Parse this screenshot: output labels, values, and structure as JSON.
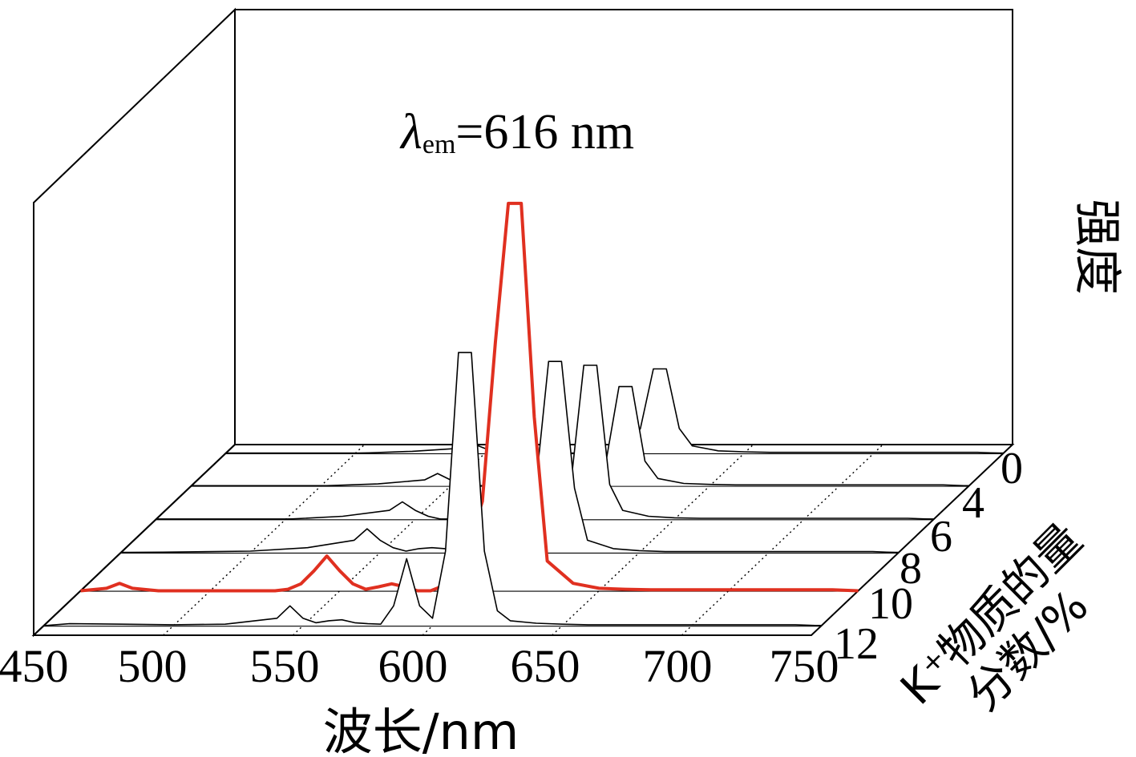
{
  "chart_data": {
    "type": "line",
    "style": "3d-waterfall",
    "annotation": {
      "lambda": "λ",
      "subscript": "em",
      "text": "=616 nm"
    },
    "xlabel": "波长/nm",
    "ylabel": "强度",
    "zlabel_line1": "K⁺物质的量",
    "zlabel_line2": "分数/%",
    "xlim": [
      450,
      750
    ],
    "x_ticks": [
      "450",
      "500",
      "550",
      "600",
      "650",
      "700",
      "750"
    ],
    "z_ticks": [
      "0",
      "4",
      "6",
      "8",
      "10",
      "12"
    ],
    "highlight_series": "10",
    "highlight_color": "#e03020",
    "series": [
      {
        "name": "0",
        "x": [
          450,
          500,
          522,
          540,
          545,
          550,
          555,
          560,
          565,
          570,
          575,
          580,
          585,
          590,
          595,
          600,
          605,
          610,
          615,
          620,
          625,
          630,
          640,
          650,
          660,
          670,
          680,
          690,
          700,
          710,
          720,
          730,
          740,
          750
        ],
        "y": [
          0,
          0,
          0.004,
          0.01,
          0.02,
          0.01,
          0.004,
          0,
          0,
          0,
          0,
          0,
          0,
          0,
          0,
          0,
          0.01,
          0.05,
          0.17,
          0.17,
          0.05,
          0.015,
          0.005,
          0.003,
          0.002,
          0.002,
          0.002,
          0.002,
          0.002,
          0.002,
          0.002,
          0.002,
          0.002,
          0
        ]
      },
      {
        "name": "4",
        "x": [
          450,
          500,
          522,
          540,
          545,
          550,
          555,
          560,
          565,
          570,
          575,
          580,
          585,
          590,
          595,
          600,
          605,
          610,
          615,
          620,
          625,
          630,
          640,
          650,
          660,
          670,
          680,
          690,
          700,
          710,
          720,
          730,
          740,
          750
        ],
        "y": [
          0,
          0,
          0.004,
          0.012,
          0.025,
          0.012,
          0.004,
          0,
          0,
          0,
          0,
          0,
          0,
          0,
          0,
          0,
          0.01,
          0.05,
          0.2,
          0.2,
          0.05,
          0.015,
          0.005,
          0.003,
          0.002,
          0.002,
          0.002,
          0.002,
          0.002,
          0.002,
          0.002,
          0.002,
          0.002,
          0
        ]
      },
      {
        "name": "6",
        "x": [
          450,
          500,
          522,
          540,
          545,
          550,
          555,
          560,
          565,
          570,
          575,
          580,
          585,
          590,
          595,
          600,
          605,
          610,
          615,
          620,
          625,
          630,
          640,
          650,
          660,
          670,
          680,
          690,
          700,
          710,
          720,
          730,
          740,
          750
        ],
        "y": [
          0,
          0,
          0.006,
          0.018,
          0.035,
          0.018,
          0.006,
          0,
          0,
          0,
          0,
          0,
          0,
          0,
          0,
          0,
          0.012,
          0.07,
          0.31,
          0.31,
          0.07,
          0.018,
          0.006,
          0.003,
          0.002,
          0.002,
          0.002,
          0.002,
          0.002,
          0.002,
          0.002,
          0.002,
          0.002,
          0
        ]
      },
      {
        "name": "8",
        "x": [
          450,
          500,
          522,
          540,
          545,
          550,
          555,
          560,
          565,
          570,
          575,
          580,
          585,
          590,
          595,
          600,
          605,
          610,
          615,
          620,
          625,
          630,
          640,
          650,
          660,
          670,
          680,
          690,
          700,
          710,
          720,
          730,
          740,
          750
        ],
        "y": [
          0,
          0.003,
          0.01,
          0.025,
          0.048,
          0.025,
          0.01,
          0.003,
          0.008,
          0.01,
          0.008,
          0.004,
          0,
          0,
          0,
          0.002,
          0.02,
          0.13,
          0.385,
          0.385,
          0.13,
          0.025,
          0.008,
          0.004,
          0.002,
          0.002,
          0.002,
          0.002,
          0.002,
          0.002,
          0.002,
          0.002,
          0.002,
          0
        ]
      },
      {
        "name": "10",
        "x": [
          450,
          460,
          465,
          470,
          480,
          500,
          525,
          530,
          535,
          540,
          545,
          550,
          555,
          560,
          565,
          570,
          575,
          580,
          585,
          590,
          595,
          600,
          605,
          610,
          615,
          620,
          625,
          630,
          640,
          650,
          660,
          670,
          680,
          690,
          700,
          710,
          720,
          730,
          740,
          750
        ],
        "y": [
          0,
          0.005,
          0.015,
          0.005,
          0,
          0,
          0,
          0.003,
          0.014,
          0.04,
          0.07,
          0.04,
          0.014,
          0.003,
          0.008,
          0.014,
          0.008,
          0,
          0,
          0.01,
          0.04,
          0.1,
          0.18,
          0.5,
          0.78,
          0.78,
          0.35,
          0.06,
          0.015,
          0.005,
          0.003,
          0.002,
          0.002,
          0.002,
          0.002,
          0.002,
          0.002,
          0.002,
          0.002,
          0
        ]
      },
      {
        "name": "12",
        "x": [
          450,
          460,
          480,
          500,
          520,
          540,
          545,
          550,
          555,
          560,
          565,
          570,
          575,
          580,
          585,
          590,
          595,
          600,
          605,
          610,
          615,
          620,
          625,
          630,
          640,
          650,
          660,
          670,
          680,
          690,
          700,
          710,
          720,
          730,
          740,
          750
        ],
        "y": [
          0,
          0.004,
          0.003,
          0.002,
          0.003,
          0.015,
          0.04,
          0.015,
          0.006,
          0.01,
          0.012,
          0.006,
          0.004,
          0.003,
          0.04,
          0.135,
          0.04,
          0.015,
          0.15,
          0.55,
          0.55,
          0.15,
          0.03,
          0.01,
          0.005,
          0.003,
          0.002,
          0.002,
          0.002,
          0.002,
          0.002,
          0.002,
          0.002,
          0.002,
          0.002,
          0
        ]
      }
    ]
  }
}
